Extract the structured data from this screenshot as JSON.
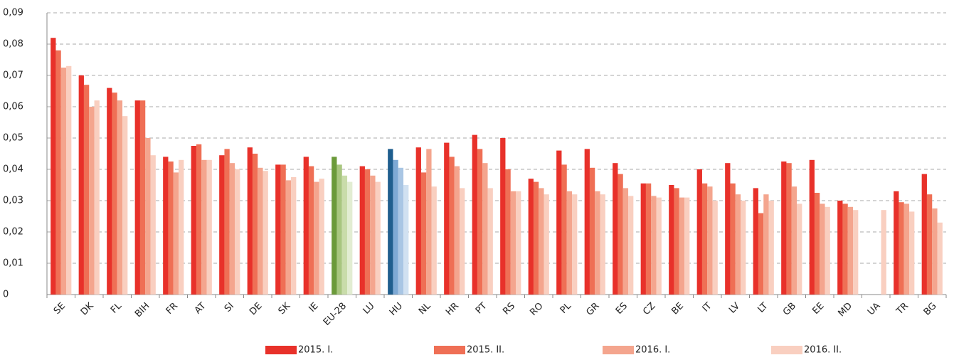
{
  "chart_data": {
    "type": "bar",
    "categories": [
      "SE",
      "DK",
      "FL",
      "BIH",
      "FR",
      "AT",
      "SI",
      "DE",
      "SK",
      "IE",
      "EU-28",
      "LU",
      "HU",
      "NL",
      "HR",
      "PT",
      "RS",
      "RO",
      "PL",
      "GR",
      "ES",
      "CZ",
      "BE",
      "IT",
      "LV",
      "LT",
      "GB",
      "EE",
      "MD",
      "UA",
      "TR",
      "BG"
    ],
    "series": [
      {
        "name": "2015. I.",
        "color": "#e8312a",
        "values": [
          0.082,
          0.07,
          0.066,
          0.062,
          0.044,
          0.0475,
          0.0445,
          0.047,
          0.0415,
          0.044,
          0.044,
          0.041,
          0.0465,
          0.047,
          0.0485,
          0.051,
          0.05,
          0.037,
          0.046,
          0.0465,
          0.042,
          0.0355,
          0.035,
          0.04,
          0.042,
          0.034,
          0.0425,
          0.043,
          0.03,
          null,
          0.033,
          0.0385
        ]
      },
      {
        "name": "2015. II.",
        "color": "#ef6f55",
        "values": [
          0.078,
          0.067,
          0.0645,
          0.062,
          0.0425,
          0.048,
          0.0465,
          0.045,
          0.0415,
          0.041,
          0.0415,
          0.04,
          0.043,
          0.039,
          0.044,
          0.0465,
          0.04,
          0.036,
          0.0415,
          0.0405,
          0.0385,
          0.0355,
          0.034,
          0.0355,
          0.0355,
          0.026,
          0.042,
          0.0325,
          0.029,
          null,
          0.0295,
          0.032
        ]
      },
      {
        "name": "2016. I.",
        "color": "#f4a58e",
        "values": [
          0.0725,
          0.06,
          0.062,
          0.05,
          0.039,
          0.043,
          0.042,
          0.0405,
          0.0365,
          0.036,
          0.038,
          0.038,
          0.0405,
          0.0465,
          0.041,
          0.042,
          0.033,
          0.034,
          0.033,
          0.033,
          0.034,
          0.0315,
          0.031,
          0.0345,
          0.032,
          0.032,
          0.0345,
          0.029,
          0.028,
          null,
          0.029,
          0.0275
        ]
      },
      {
        "name": "2016. II.",
        "color": "#f9cfc0",
        "values": [
          0.073,
          0.062,
          0.057,
          0.0445,
          0.043,
          0.043,
          0.04,
          0.0395,
          0.0375,
          0.037,
          0.036,
          0.036,
          0.035,
          0.0345,
          0.034,
          0.034,
          0.033,
          0.032,
          0.032,
          0.032,
          0.0315,
          0.031,
          0.031,
          0.03,
          0.03,
          0.03,
          0.029,
          0.028,
          0.027,
          0.027,
          0.0265,
          0.023
        ]
      }
    ],
    "highlight": {
      "EU-28": [
        "#6b9a3a",
        "#a8c67f",
        "#c9dcaa",
        "#e2edd2"
      ],
      "HU": [
        "#1f5e8e",
        "#7ea9d4",
        "#a9c6e4",
        "#d1e1f1"
      ]
    },
    "ylim": [
      0,
      0.09
    ],
    "yticks": [
      0,
      {
        "value": 0.01,
        "label": "0,01"
      },
      {
        "value": 0.02,
        "label": "0,02"
      },
      {
        "value": 0.03,
        "label": "0,03"
      },
      {
        "value": 0.04,
        "label": "0,04"
      },
      {
        "value": 0.05,
        "label": "0,05"
      },
      {
        "value": 0.06,
        "label": "0,06"
      },
      {
        "value": 0.07,
        "label": "0,07"
      },
      {
        "value": 0.08,
        "label": "0,08"
      },
      {
        "value": 0.09,
        "label": "0,09"
      }
    ],
    "grid": true,
    "legend": "bottom"
  }
}
